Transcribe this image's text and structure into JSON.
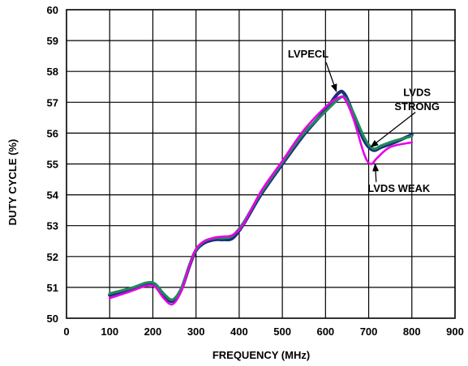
{
  "chart_data": {
    "type": "line",
    "title": "",
    "xlabel": "FREQUENCY (MHz)",
    "ylabel": "DUTY CYCLE (%)",
    "xlim": [
      0,
      900
    ],
    "ylim": [
      50,
      60
    ],
    "x_ticks": [
      0,
      100,
      200,
      300,
      400,
      500,
      600,
      700,
      800,
      900
    ],
    "y_ticks": [
      50,
      51,
      52,
      53,
      54,
      55,
      56,
      57,
      58,
      59,
      60
    ],
    "grid": true,
    "legend": "none",
    "series": [
      {
        "name": "LVPECL",
        "color": "#1a2f7a",
        "x": [
          100,
          150,
          185,
          205,
          225,
          245,
          265,
          285,
          300,
          320,
          345,
          365,
          385,
          410,
          450,
          500,
          550,
          600,
          630,
          645,
          665,
          690,
          710,
          730,
          760,
          800
        ],
        "y": [
          50.75,
          50.95,
          51.12,
          51.1,
          50.75,
          50.55,
          50.9,
          51.7,
          52.2,
          52.45,
          52.55,
          52.55,
          52.6,
          53.05,
          54.0,
          55.0,
          55.95,
          56.75,
          57.3,
          57.25,
          56.6,
          55.75,
          55.45,
          55.55,
          55.7,
          55.95
        ]
      },
      {
        "name": "LVDS STRONG",
        "color": "#1f8a5c",
        "x": [
          100,
          150,
          185,
          205,
          225,
          245,
          265,
          285,
          300,
          320,
          345,
          365,
          385,
          410,
          450,
          500,
          550,
          600,
          630,
          645,
          665,
          690,
          710,
          730,
          760,
          800
        ],
        "y": [
          50.8,
          50.98,
          51.15,
          51.12,
          50.8,
          50.6,
          50.95,
          51.72,
          52.22,
          52.5,
          52.6,
          52.6,
          52.68,
          53.1,
          54.05,
          55.05,
          56.0,
          56.7,
          57.1,
          57.15,
          56.65,
          55.85,
          55.5,
          55.6,
          55.75,
          55.9
        ]
      },
      {
        "name": "LVDS WEAK",
        "color": "#e600e6",
        "x": [
          100,
          150,
          185,
          205,
          225,
          245,
          265,
          285,
          300,
          320,
          345,
          365,
          385,
          410,
          450,
          500,
          550,
          600,
          630,
          645,
          665,
          690,
          705,
          720,
          750,
          800
        ],
        "y": [
          50.65,
          50.88,
          51.05,
          51.02,
          50.65,
          50.45,
          50.85,
          51.7,
          52.25,
          52.5,
          52.62,
          52.65,
          52.7,
          53.05,
          54.1,
          55.1,
          56.1,
          56.85,
          57.15,
          57.1,
          56.45,
          55.3,
          55.0,
          55.2,
          55.55,
          55.7
        ]
      }
    ],
    "annotations": [
      {
        "text": "LVPECL",
        "x": 560,
        "y": 58.45,
        "target_x": 625,
        "target_y": 57.35
      },
      {
        "text": "LVDS",
        "x": 812,
        "y": 57.2,
        "target_x": 705,
        "target_y": 55.55
      },
      {
        "text": "STRONG",
        "x": 812,
        "y": 56.75
      },
      {
        "text": "LVDS WEAK",
        "x": 770,
        "y": 54.1,
        "target_x": 715,
        "target_y": 55.0
      }
    ]
  }
}
